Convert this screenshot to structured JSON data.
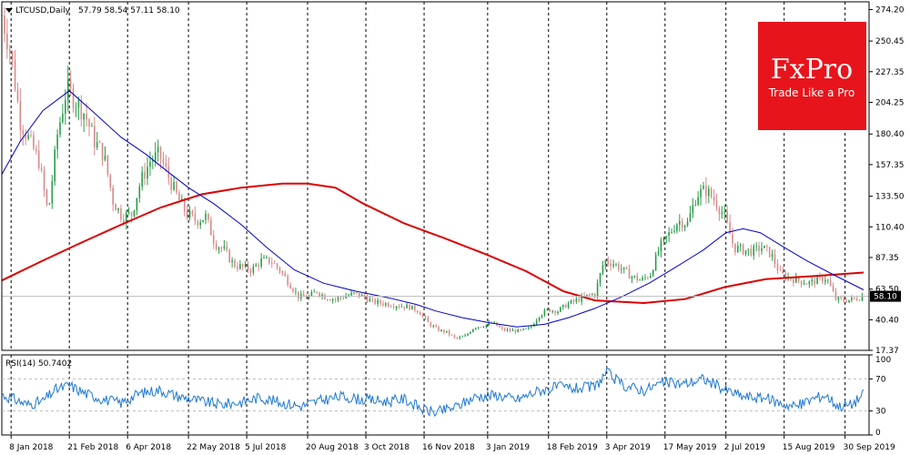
{
  "chart_data": [
    {
      "type": "candlestick",
      "symbol_label": "LTCUSD,Daily",
      "ohlc_label": "57.79 58.54 57.11 58.10",
      "last_price": "58.10",
      "y_scale": "linear",
      "ylim": [
        17.37,
        280
      ],
      "y_ticks": [
        "274.20",
        "250.45",
        "227.35",
        "204.25",
        "180.40",
        "157.35",
        "133.50",
        "110.40",
        "87.35",
        "63.50",
        "40.40",
        "17.37"
      ],
      "y_tick_values": [
        274.2,
        250.45,
        227.35,
        204.25,
        180.4,
        157.35,
        133.5,
        110.4,
        87.35,
        63.5,
        40.4,
        17.37
      ],
      "x_ticks": [
        "8 Jan 2018",
        "21 Feb 2018",
        "6 Apr 2018",
        "22 May 2018",
        "5 Jul 2018",
        "20 Aug 2018",
        "3 Oct 2018",
        "16 Nov 2018",
        "3 Jan 2019",
        "18 Feb 2019",
        "3 Apr 2019",
        "17 May 2019",
        "2 Jul 2019",
        "15 Aug 2019",
        "30 Sep 2019"
      ],
      "x_tick_dates": [
        "2018-01-08",
        "2018-02-21",
        "2018-04-06",
        "2018-05-22",
        "2018-07-05",
        "2018-08-20",
        "2018-10-03",
        "2018-11-16",
        "2019-01-03",
        "2019-02-18",
        "2019-04-03",
        "2019-05-17",
        "2019-07-02",
        "2019-08-15",
        "2019-09-30"
      ],
      "date_range": [
        "2018-01-01",
        "2019-10-14"
      ],
      "grid": "vertical dashed at x ticks",
      "price_path": [
        [
          "2018-01-01",
          270
        ],
        [
          "2018-01-08",
          240
        ],
        [
          "2018-01-15",
          190
        ],
        [
          "2018-01-22",
          175
        ],
        [
          "2018-01-29",
          160
        ],
        [
          "2018-02-05",
          120
        ],
        [
          "2018-02-12",
          180
        ],
        [
          "2018-02-19",
          215
        ],
        [
          "2018-02-26",
          205
        ],
        [
          "2018-03-05",
          195
        ],
        [
          "2018-03-12",
          175
        ],
        [
          "2018-03-19",
          165
        ],
        [
          "2018-03-26",
          130
        ],
        [
          "2018-04-02",
          118
        ],
        [
          "2018-04-09",
          120
        ],
        [
          "2018-04-16",
          145
        ],
        [
          "2018-04-23",
          160
        ],
        [
          "2018-04-30",
          165
        ],
        [
          "2018-05-07",
          148
        ],
        [
          "2018-05-14",
          132
        ],
        [
          "2018-05-21",
          120
        ],
        [
          "2018-05-28",
          115
        ],
        [
          "2018-06-04",
          118
        ],
        [
          "2018-06-11",
          98
        ],
        [
          "2018-06-18",
          93
        ],
        [
          "2018-06-25",
          82
        ],
        [
          "2018-07-02",
          80
        ],
        [
          "2018-07-09",
          78
        ],
        [
          "2018-07-16",
          85
        ],
        [
          "2018-07-23",
          85
        ],
        [
          "2018-07-30",
          78
        ],
        [
          "2018-08-06",
          68
        ],
        [
          "2018-08-13",
          58
        ],
        [
          "2018-08-20",
          57
        ],
        [
          "2018-08-27",
          62
        ],
        [
          "2018-09-03",
          57
        ],
        [
          "2018-09-10",
          56
        ],
        [
          "2018-09-17",
          58
        ],
        [
          "2018-09-24",
          60
        ],
        [
          "2018-10-01",
          58
        ],
        [
          "2018-10-08",
          54
        ],
        [
          "2018-10-15",
          53
        ],
        [
          "2018-10-22",
          52
        ],
        [
          "2018-10-29",
          51
        ],
        [
          "2018-11-05",
          50
        ],
        [
          "2018-11-12",
          47
        ],
        [
          "2018-11-19",
          38
        ],
        [
          "2018-11-26",
          33
        ],
        [
          "2018-12-03",
          31
        ],
        [
          "2018-12-10",
          26
        ],
        [
          "2018-12-17",
          28
        ],
        [
          "2018-12-24",
          35
        ],
        [
          "2018-12-31",
          36
        ],
        [
          "2019-01-07",
          38
        ],
        [
          "2019-01-14",
          33
        ],
        [
          "2019-01-21",
          32
        ],
        [
          "2019-01-28",
          32
        ],
        [
          "2019-02-04",
          34
        ],
        [
          "2019-02-11",
          44
        ],
        [
          "2019-02-18",
          48
        ],
        [
          "2019-02-25",
          47
        ],
        [
          "2019-03-04",
          52
        ],
        [
          "2019-03-11",
          55
        ],
        [
          "2019-03-18",
          58
        ],
        [
          "2019-03-25",
          60
        ],
        [
          "2019-04-01",
          85
        ],
        [
          "2019-04-08",
          83
        ],
        [
          "2019-04-15",
          78
        ],
        [
          "2019-04-22",
          73
        ],
        [
          "2019-04-29",
          70
        ],
        [
          "2019-05-06",
          75
        ],
        [
          "2019-05-13",
          95
        ],
        [
          "2019-05-20",
          105
        ],
        [
          "2019-05-27",
          115
        ],
        [
          "2019-06-03",
          113
        ],
        [
          "2019-06-10",
          135
        ],
        [
          "2019-06-17",
          138
        ],
        [
          "2019-06-24",
          130
        ],
        [
          "2019-07-01",
          118
        ],
        [
          "2019-07-08",
          95
        ],
        [
          "2019-07-15",
          93
        ],
        [
          "2019-07-22",
          92
        ],
        [
          "2019-07-29",
          95
        ],
        [
          "2019-08-05",
          90
        ],
        [
          "2019-08-12",
          75
        ],
        [
          "2019-08-19",
          72
        ],
        [
          "2019-08-26",
          70
        ],
        [
          "2019-09-02",
          68
        ],
        [
          "2019-09-09",
          70
        ],
        [
          "2019-09-16",
          72
        ],
        [
          "2019-09-23",
          56
        ],
        [
          "2019-09-30",
          55
        ],
        [
          "2019-10-07",
          56
        ],
        [
          "2019-10-14",
          58.1
        ]
      ],
      "ma_fast_path": [
        [
          "2018-01-01",
          150
        ],
        [
          "2018-01-15",
          175
        ],
        [
          "2018-02-01",
          198
        ],
        [
          "2018-02-21",
          213
        ],
        [
          "2018-03-10",
          198
        ],
        [
          "2018-04-01",
          178
        ],
        [
          "2018-04-20",
          165
        ],
        [
          "2018-05-05",
          153
        ],
        [
          "2018-05-22",
          140
        ],
        [
          "2018-06-10",
          128
        ],
        [
          "2018-07-01",
          112
        ],
        [
          "2018-07-20",
          95
        ],
        [
          "2018-08-10",
          78
        ],
        [
          "2018-09-01",
          68
        ],
        [
          "2018-09-25",
          62
        ],
        [
          "2018-10-20",
          57
        ],
        [
          "2018-11-10",
          52
        ],
        [
          "2018-11-25",
          47
        ],
        [
          "2018-12-15",
          42
        ],
        [
          "2019-01-05",
          38
        ],
        [
          "2019-01-25",
          35
        ],
        [
          "2019-02-15",
          37
        ],
        [
          "2019-03-05",
          42
        ],
        [
          "2019-03-25",
          49
        ],
        [
          "2019-04-15",
          58
        ],
        [
          "2019-05-05",
          68
        ],
        [
          "2019-05-25",
          80
        ],
        [
          "2019-06-15",
          93
        ],
        [
          "2019-07-02",
          106
        ],
        [
          "2019-07-15",
          109
        ],
        [
          "2019-07-28",
          106
        ],
        [
          "2019-08-15",
          95
        ],
        [
          "2019-09-01",
          85
        ],
        [
          "2019-09-20",
          75
        ],
        [
          "2019-10-14",
          63
        ]
      ],
      "ma_slow_path": [
        [
          "2018-01-01",
          70
        ],
        [
          "2018-02-01",
          85
        ],
        [
          "2018-03-01",
          98
        ],
        [
          "2018-04-01",
          112
        ],
        [
          "2018-05-01",
          125
        ],
        [
          "2018-06-01",
          135
        ],
        [
          "2018-07-01",
          140
        ],
        [
          "2018-08-01",
          143
        ],
        [
          "2018-08-20",
          143
        ],
        [
          "2018-09-10",
          140
        ],
        [
          "2018-10-01",
          128
        ],
        [
          "2018-11-01",
          113
        ],
        [
          "2018-12-01",
          102
        ],
        [
          "2019-01-01",
          90
        ],
        [
          "2019-02-01",
          77
        ],
        [
          "2019-03-01",
          62
        ],
        [
          "2019-03-25",
          55
        ],
        [
          "2019-05-01",
          53
        ],
        [
          "2019-06-01",
          56
        ],
        [
          "2019-07-01",
          65
        ],
        [
          "2019-08-01",
          71
        ],
        [
          "2019-09-01",
          73
        ],
        [
          "2019-10-14",
          76
        ]
      ]
    },
    {
      "type": "line",
      "label": "RSI(14) 50.7402",
      "ylim": [
        0,
        100
      ],
      "y_ticks": [
        "100",
        "70",
        "30",
        "0"
      ],
      "y_tick_values": [
        100,
        70,
        30,
        0
      ],
      "level_lines": [
        70,
        30
      ],
      "values": [
        [
          "2018-01-01",
          50
        ],
        [
          "2018-01-10",
          45
        ],
        [
          "2018-01-20",
          38
        ],
        [
          "2018-02-01",
          42
        ],
        [
          "2018-02-10",
          56
        ],
        [
          "2018-02-21",
          62
        ],
        [
          "2018-03-05",
          52
        ],
        [
          "2018-03-20",
          44
        ],
        [
          "2018-04-01",
          40
        ],
        [
          "2018-04-15",
          52
        ],
        [
          "2018-04-30",
          56
        ],
        [
          "2018-05-15",
          48
        ],
        [
          "2018-06-01",
          42
        ],
        [
          "2018-06-15",
          38
        ],
        [
          "2018-07-01",
          41
        ],
        [
          "2018-07-15",
          47
        ],
        [
          "2018-08-01",
          40
        ],
        [
          "2018-08-15",
          36
        ],
        [
          "2018-09-01",
          44
        ],
        [
          "2018-09-15",
          48
        ],
        [
          "2018-10-01",
          44
        ],
        [
          "2018-10-20",
          42
        ],
        [
          "2018-11-01",
          45
        ],
        [
          "2018-11-15",
          32
        ],
        [
          "2018-11-25",
          28
        ],
        [
          "2018-12-10",
          35
        ],
        [
          "2018-12-25",
          48
        ],
        [
          "2019-01-10",
          50
        ],
        [
          "2019-01-25",
          44
        ],
        [
          "2019-02-10",
          55
        ],
        [
          "2019-02-25",
          60
        ],
        [
          "2019-03-10",
          58
        ],
        [
          "2019-03-25",
          60
        ],
        [
          "2019-04-03",
          78
        ],
        [
          "2019-04-15",
          62
        ],
        [
          "2019-05-01",
          56
        ],
        [
          "2019-05-15",
          65
        ],
        [
          "2019-06-01",
          64
        ],
        [
          "2019-06-15",
          70
        ],
        [
          "2019-07-02",
          56
        ],
        [
          "2019-07-15",
          48
        ],
        [
          "2019-08-01",
          46
        ],
        [
          "2019-08-15",
          38
        ],
        [
          "2019-08-25",
          36
        ],
        [
          "2019-09-05",
          45
        ],
        [
          "2019-09-15",
          50
        ],
        [
          "2019-09-25",
          36
        ],
        [
          "2019-10-05",
          38
        ],
        [
          "2019-10-14",
          50.74
        ]
      ]
    }
  ],
  "logo": {
    "brand": "FxPro",
    "tagline": "Trade Like a Pro",
    "color": "#e8141b"
  },
  "colors": {
    "ma_fast": "#0000cc",
    "ma_slow": "#dd0000",
    "rsi": "#1e78d2",
    "bull": "#2a9d4a",
    "bear": "#d88a8a",
    "price_tag": "#000000"
  }
}
